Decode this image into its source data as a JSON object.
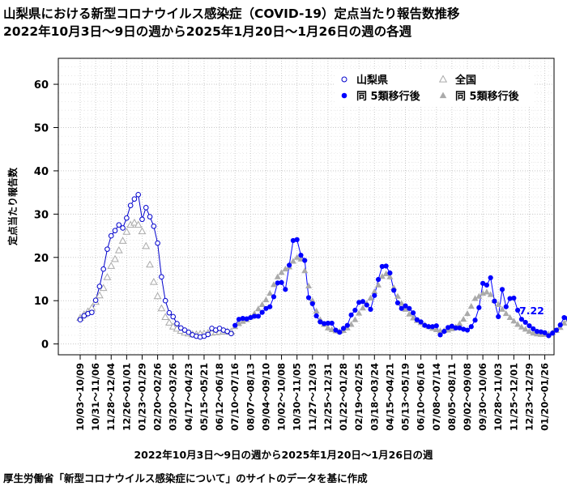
{
  "titles": {
    "line1": "山梨県における新型コロナウイルス感染症（COVID-19）定点当たり報告数推移",
    "line2": "2022年10月3日～9日の週から2025年1月20日～1月26日の週の各週"
  },
  "source_note": "厚生労働省「新型コロナウイルス感染症について」のサイトのデータを基に作成",
  "chart_data": {
    "type": "line",
    "ylabel": "定点当たり報告数",
    "xlabel": "2022年10月3日～9日の週から2025年1月20日～1月26日の週",
    "ylim": [
      -2.5,
      66
    ],
    "y_ticks": [
      0,
      10,
      20,
      30,
      40,
      50,
      60
    ],
    "grid": true,
    "legend_position": "top-right",
    "x_tick_labels": [
      "10/03～10/09",
      "10/31～11/06",
      "11/28～12/04",
      "12/26～01/01",
      "01/23～01/29",
      "02/20～02/26",
      "03/20～03/26",
      "04/17～04/23",
      "05/15～05/21",
      "06/12～06/18",
      "07/10～07/16",
      "08/07～08/13",
      "09/04～09/10",
      "10/02～10/08",
      "10/30～11/05",
      "11/27～12/03",
      "12/25～12/31",
      "01/22～01/28",
      "02/19～02/25",
      "03/18～03/24",
      "04/15～04/21",
      "05/13～05/19",
      "06/10～06/16",
      "07/08～07/14",
      "08/05～08/11",
      "09/02～09/08",
      "09/30～10/06",
      "10/28～11/03",
      "11/25～12/01",
      "12/23～12/29",
      "01/20～01/26"
    ],
    "series": [
      {
        "name": "山梨県",
        "color": "#0000cc",
        "marker": "open-circle",
        "values": [
          5.6,
          6.5,
          7.0,
          7.3,
          10.1,
          13.3,
          17.3,
          21.9,
          25.0,
          26.2,
          27.5,
          26.8,
          29.1,
          32.0,
          33.5,
          34.5,
          28.8,
          31.5,
          29.4,
          27.2,
          23.3,
          15.5,
          10.0,
          7.2,
          6.3,
          4.7,
          3.7,
          3.2,
          2.7,
          2.1,
          1.8,
          1.6,
          1.8,
          2.2,
          3.6,
          3.2,
          3.6,
          3.2,
          2.9,
          2.4
        ]
      },
      {
        "name": "全国",
        "color": "#aaaaaa",
        "marker": "open-triangle",
        "values": [
          6.0,
          6.8,
          7.5,
          8.3,
          9.7,
          11.2,
          12.9,
          15.4,
          18.0,
          19.6,
          21.6,
          23.8,
          25.9,
          27.5,
          28.0,
          27.5,
          26.0,
          22.6,
          18.3,
          14.3,
          11.0,
          8.2,
          6.2,
          4.9,
          4.0,
          3.5,
          3.0,
          2.6,
          2.4,
          2.2,
          2.2,
          2.3,
          2.4,
          2.5,
          2.6,
          2.7,
          2.8,
          2.9,
          2.8,
          2.8
        ]
      },
      {
        "name": "同 5類移行後",
        "color": "#0000ff",
        "marker": "filled-circle",
        "values": [
          4.3,
          5.7,
          5.9,
          5.8,
          6.1,
          6.4,
          6.4,
          7.3,
          8.2,
          8.6,
          10.9,
          14.1,
          14.2,
          12.6,
          18.2,
          23.9,
          24.1,
          20.5,
          19.3,
          10.7,
          9.3,
          6.5,
          5.1,
          4.7,
          4.8,
          4.8,
          3.2,
          2.7,
          3.6,
          4.3,
          6.7,
          7.8,
          9.6,
          9.8,
          9.0,
          8.0,
          11.2,
          14.9,
          17.9,
          18.0,
          16.4,
          12.4,
          9.5,
          8.2,
          8.8,
          8.2,
          7.2,
          5.6,
          5.1,
          4.3,
          4.0,
          4.0,
          4.2,
          2.1,
          2.9,
          3.8,
          4.1,
          3.7,
          3.7,
          3.4,
          3.2,
          4.0,
          5.5,
          8.4,
          14.0,
          13.6,
          15.3,
          9.9,
          6.3,
          12.6,
          8.6,
          10.5,
          10.6,
          7.8,
          5.7,
          5.0,
          4.2,
          3.5,
          2.9,
          2.8,
          2.6,
          1.9,
          2.5,
          3.2,
          4.4,
          6.1,
          5.9,
          9.0,
          10.2,
          3.5,
          10.8,
          6.3,
          7.22
        ]
      },
      {
        "name": "同 5類移行後",
        "color": "#aaaaaa",
        "marker": "filled-triangle",
        "values": [
          4.0,
          4.7,
          5.2,
          5.6,
          6.2,
          7.0,
          8.1,
          9.1,
          10.2,
          11.7,
          13.7,
          15.5,
          16.5,
          17.3,
          17.8,
          19.1,
          20.0,
          19.6,
          16.9,
          13.4,
          10.0,
          7.6,
          5.6,
          4.5,
          3.7,
          3.3,
          3.0,
          2.9,
          3.1,
          3.7,
          4.5,
          5.6,
          7.1,
          8.3,
          9.4,
          10.6,
          12.1,
          13.6,
          15.6,
          16.2,
          15.5,
          13.0,
          11.0,
          9.4,
          8.0,
          6.9,
          6.0,
          5.4,
          4.9,
          4.4,
          4.0,
          3.6,
          3.3,
          3.0,
          3.1,
          3.2,
          3.5,
          3.9,
          4.7,
          5.7,
          7.0,
          8.7,
          10.5,
          11.0,
          11.7,
          12.0,
          11.4,
          10.0,
          9.1,
          8.0,
          7.0,
          6.1,
          5.3,
          4.5,
          3.9,
          3.4,
          2.9,
          2.5,
          2.3,
          2.2,
          2.2,
          2.3,
          2.6,
          3.1,
          3.8,
          4.8,
          5.6,
          5.6,
          7.0,
          5.9,
          6.5,
          6.3,
          6.5
        ]
      }
    ],
    "annotations": [
      {
        "text": "7.22",
        "color": "#0000ff"
      }
    ]
  }
}
